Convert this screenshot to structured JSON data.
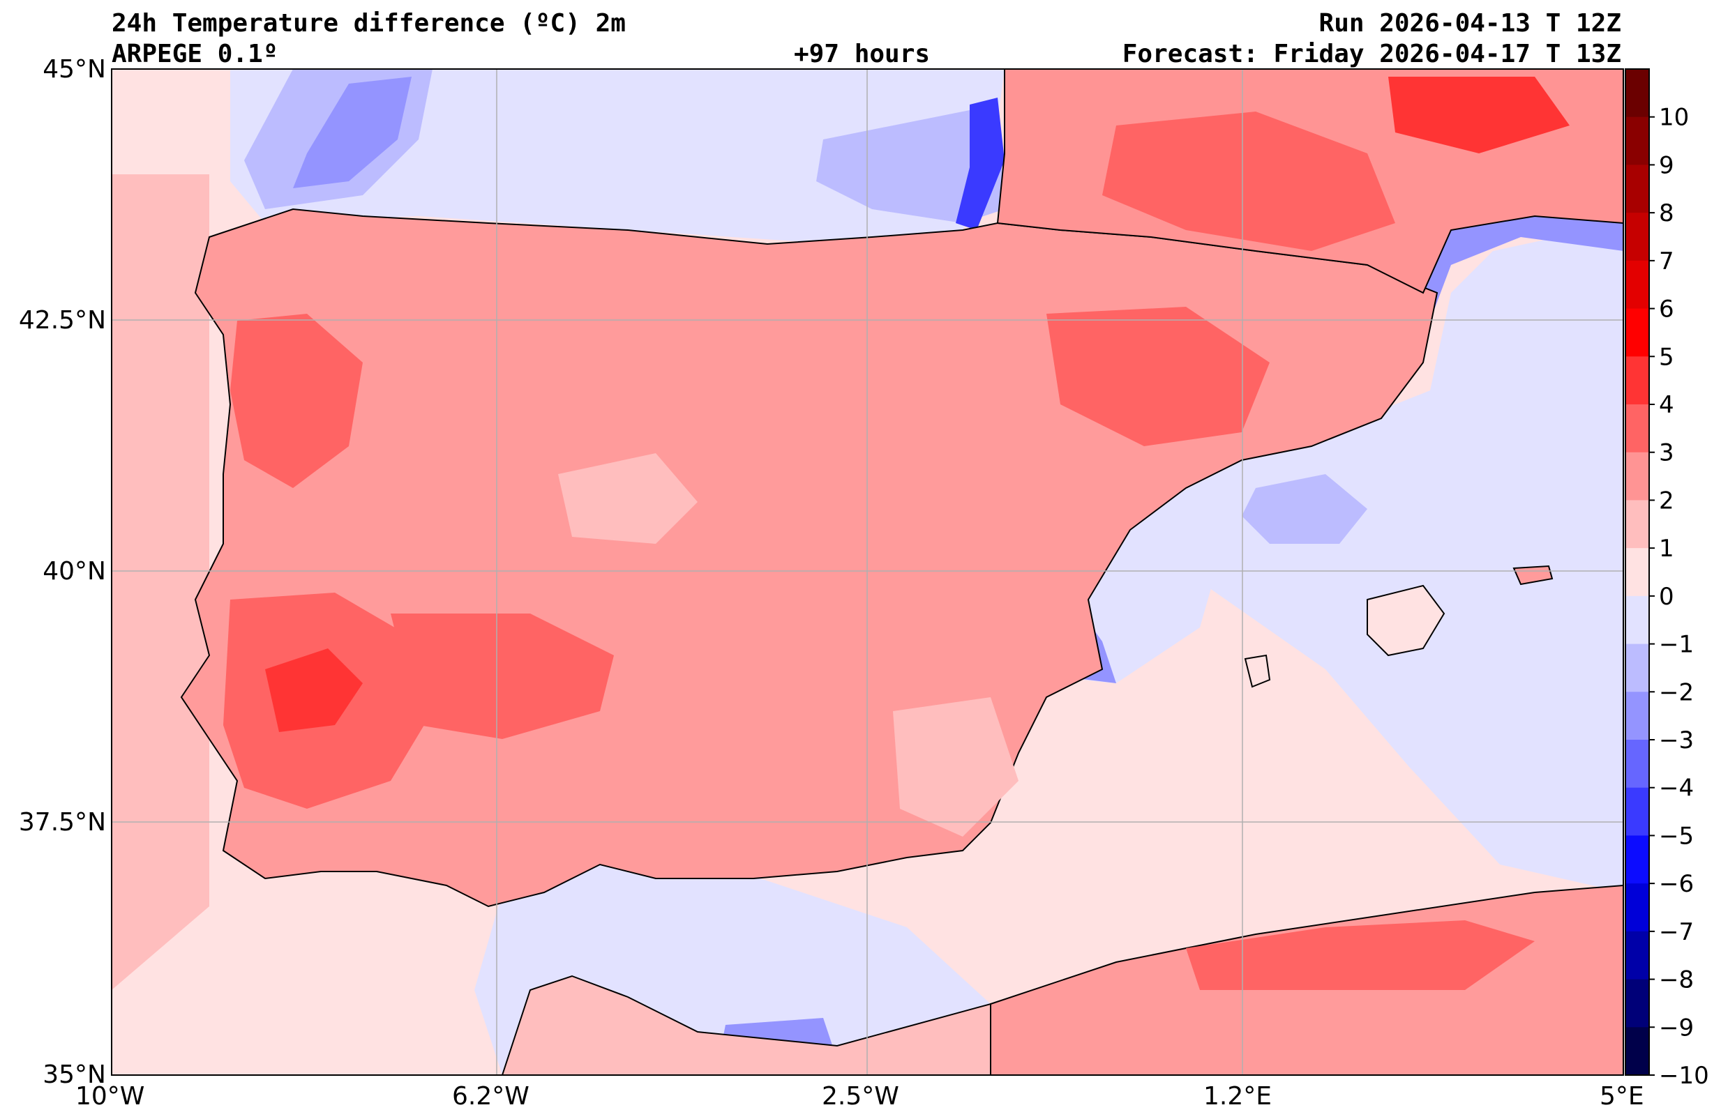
{
  "header": {
    "title": "24h Temperature difference (ºC) 2m",
    "model": "ARPEGE 0.1º",
    "lead_time": "+97 hours",
    "run": "Run 2026-04-13 T 12Z",
    "forecast": "Forecast: Friday 2026-04-17 T 13Z"
  },
  "axes": {
    "lat_labels": [
      "45°N",
      "42.5°N",
      "40°N",
      "37.5°N",
      "35°N"
    ],
    "lon_labels": [
      "10°W",
      "6.2°W",
      "2.5°W",
      "1.2°E",
      "5°E"
    ]
  },
  "colorbar": {
    "labels": [
      "10",
      "9",
      "8",
      "7",
      "6",
      "5",
      "4",
      "3",
      "2",
      "1",
      "0",
      "−1",
      "−2",
      "−3",
      "−4",
      "−5",
      "−6",
      "−7",
      "−8",
      "−9",
      "−10"
    ],
    "colors": [
      "#6b0000",
      "#8a0000",
      "#a80000",
      "#c60000",
      "#e30000",
      "#ff0000",
      "#ff3434",
      "#ff6464",
      "#ff9494",
      "#ffbebe",
      "#ffe2e2",
      "#e2e2ff",
      "#bcbcff",
      "#9494ff",
      "#6666ff",
      "#3a3aff",
      "#0c0cff",
      "#0000d8",
      "#0000a8",
      "#000078",
      "#00004a"
    ]
  },
  "colors": {
    "sea_warm": "#ffe2e2",
    "land_base": "#ff9b9b",
    "gridline": "#b0b0b0"
  }
}
